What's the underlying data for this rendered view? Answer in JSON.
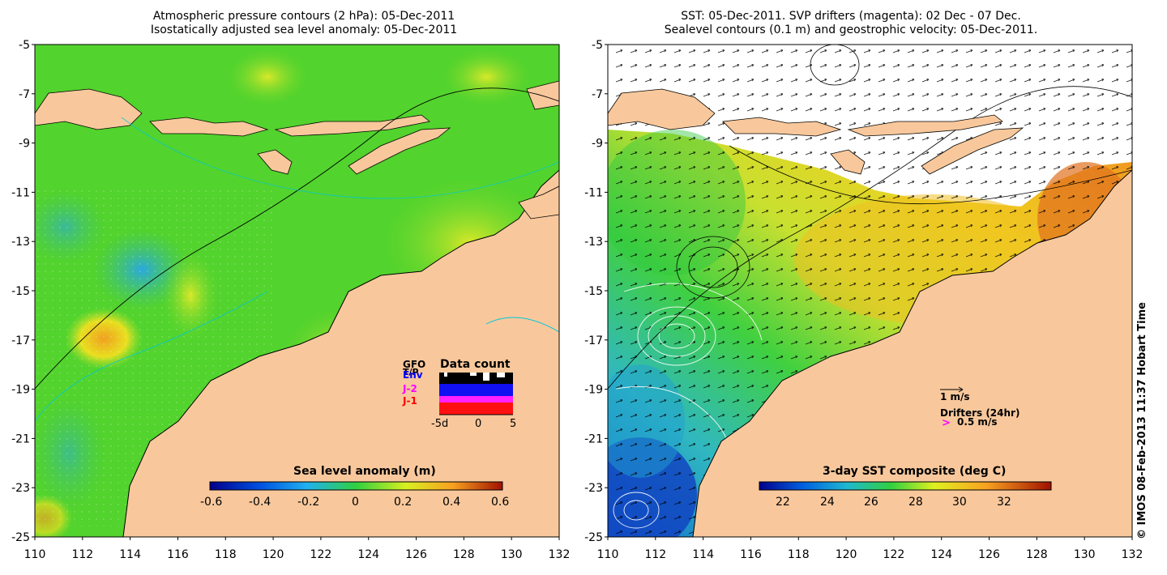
{
  "left_panel": {
    "title_line1": "Atmospheric pressure contours (2 hPa): 05-Dec-2011",
    "title_line2": "Isostatically adjusted sea level anomaly: 05-Dec-2011",
    "colorbar_label": "Sea level anomaly (m)",
    "colorbar_ticks": [
      "-0.6",
      "-0.4",
      "-0.2",
      "0",
      "0.2",
      "0.4",
      "0.6"
    ],
    "data_count": {
      "title": "Data count",
      "legend": [
        {
          "label": "GFO",
          "color": "#000000"
        },
        {
          "label": "T/P",
          "color": "#000000"
        },
        {
          "label": "Env",
          "color": "#0000ff"
        },
        {
          "label": "J-2",
          "color": "#ff00ff"
        },
        {
          "label": "J-1",
          "color": "#ff0000"
        }
      ],
      "axis_ticks": [
        "-5d",
        "0",
        "5"
      ]
    }
  },
  "right_panel": {
    "title_line1": "SST: 05-Dec-2011. SVP drifters (magenta): 02 Dec - 07 Dec.",
    "title_line2": "Sealevel contours (0.1 m) and geostrophic velocity: 05-Dec-2011.",
    "colorbar_label": "3-day SST composite (deg C)",
    "colorbar_ticks": [
      "22",
      "24",
      "26",
      "28",
      "30",
      "32"
    ],
    "velocity_scale_label": "1 m/s",
    "drifters_label": "Drifters (24hr)",
    "drifters_marker": ">",
    "drifters_speed": "0.5 m/s"
  },
  "axes": {
    "lat_ticks": [
      "-5",
      "-7",
      "-9",
      "-11",
      "-13",
      "-15",
      "-17",
      "-19",
      "-21",
      "-23",
      "-25"
    ],
    "lon_ticks": [
      "110",
      "112",
      "114",
      "116",
      "118",
      "120",
      "122",
      "124",
      "126",
      "128",
      "130",
      "132"
    ]
  },
  "copyright": "© IMOS 08-Feb-2013 11:37 Hobart Time",
  "colors": {
    "land": "#f8c89c",
    "ocean_green": "#4fd02c",
    "sst_yellow": "#e0e81c",
    "sst_orange": "#f0a020"
  }
}
